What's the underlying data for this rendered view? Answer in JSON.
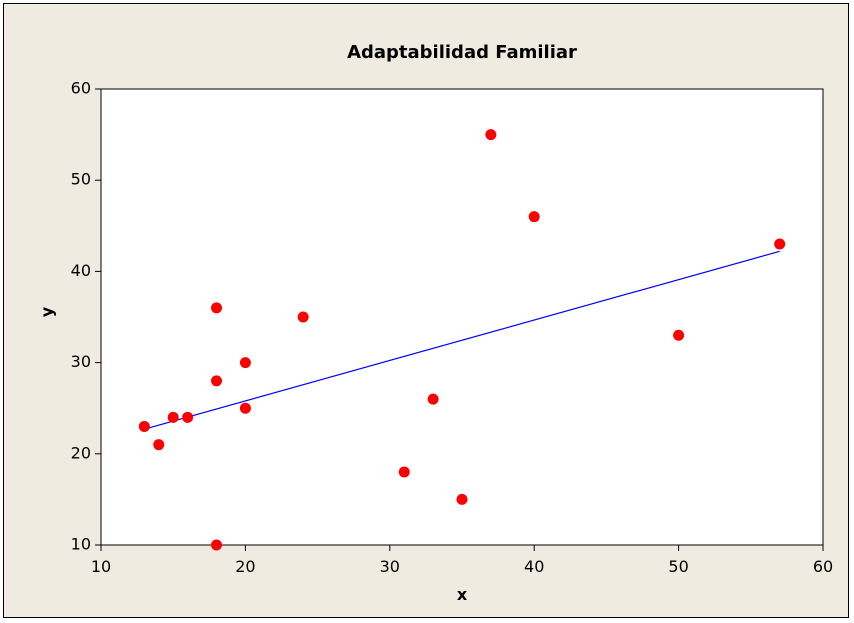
{
  "chart_data": {
    "type": "scatter",
    "title": "Adaptabilidad Familiar",
    "xlabel": "x",
    "ylabel": "y",
    "xlim": [
      10,
      60
    ],
    "ylim": [
      10,
      60
    ],
    "xticks": [
      10,
      20,
      30,
      40,
      50,
      60
    ],
    "yticks": [
      10,
      20,
      30,
      40,
      50,
      60
    ],
    "grid": false,
    "points": [
      {
        "x": 13,
        "y": 23
      },
      {
        "x": 14,
        "y": 21
      },
      {
        "x": 15,
        "y": 24
      },
      {
        "x": 16,
        "y": 24
      },
      {
        "x": 18,
        "y": 36
      },
      {
        "x": 18,
        "y": 28
      },
      {
        "x": 18,
        "y": 10
      },
      {
        "x": 20,
        "y": 30
      },
      {
        "x": 20,
        "y": 25
      },
      {
        "x": 24,
        "y": 35
      },
      {
        "x": 31,
        "y": 18
      },
      {
        "x": 33,
        "y": 26
      },
      {
        "x": 35,
        "y": 15
      },
      {
        "x": 37,
        "y": 55
      },
      {
        "x": 40,
        "y": 46
      },
      {
        "x": 50,
        "y": 33
      },
      {
        "x": 57,
        "y": 43
      }
    ],
    "fit_line": {
      "x": [
        13,
        57
      ],
      "y": [
        22.7,
        42.2
      ]
    },
    "colors": {
      "figure_background": "#f0ebe1",
      "plot_background": "#ffffff",
      "points": "#ff0000",
      "fit_line": "#0000ff"
    }
  }
}
